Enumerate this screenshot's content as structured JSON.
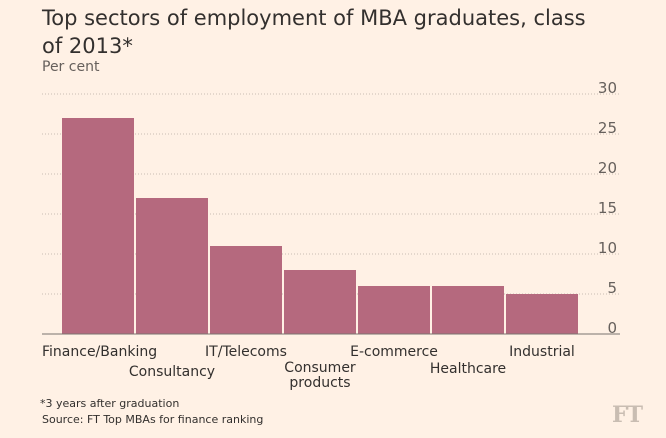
{
  "chart_data": {
    "type": "bar",
    "title": "Top sectors of employment of MBA graduates, class of 2013*",
    "subtitle": "Per cent",
    "categories": [
      "Finance/Banking",
      "Consultancy",
      "IT/Telecoms",
      "Consumer products",
      "E-commerce",
      "Healthcare",
      "Industrial"
    ],
    "category_label_lines": [
      [
        "Finance/Banking"
      ],
      [
        "Consultancy"
      ],
      [
        "IT/Telecoms"
      ],
      [
        "Consumer",
        "products"
      ],
      [
        "E-commerce"
      ],
      [
        "Healthcare"
      ],
      [
        "Industrial"
      ]
    ],
    "values": [
      27,
      17,
      11,
      8,
      6,
      6,
      5
    ],
    "ylim": [
      0,
      30
    ],
    "yticks": [
      0,
      5,
      10,
      15,
      20,
      25,
      30
    ],
    "grid": true,
    "y_axis_position": "right",
    "bar_color": "#b5697e",
    "grid_color": "#c9bdb2"
  },
  "footnote": "*3 years after graduation",
  "source": "Source: FT Top MBAs for finance ranking",
  "logo": "FT"
}
